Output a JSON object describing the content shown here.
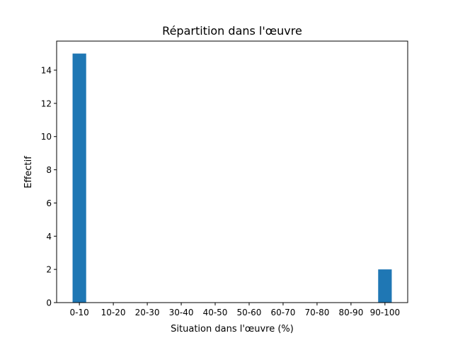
{
  "chart_data": {
    "type": "bar",
    "title": "Répartition dans l'œuvre",
    "xlabel": "Situation dans l'œuvre (%)",
    "ylabel": "Effectif",
    "categories": [
      "0-10",
      "10-20",
      "20-30",
      "30-40",
      "40-50",
      "50-60",
      "60-70",
      "70-80",
      "80-90",
      "90-100"
    ],
    "values": [
      15,
      0,
      0,
      0,
      0,
      0,
      0,
      0,
      0,
      2
    ],
    "ylim": [
      0,
      15.75
    ],
    "yticks": [
      0,
      2,
      4,
      6,
      8,
      10,
      12,
      14
    ],
    "grid": false,
    "colors": {
      "bar": "#1f77b4"
    }
  }
}
